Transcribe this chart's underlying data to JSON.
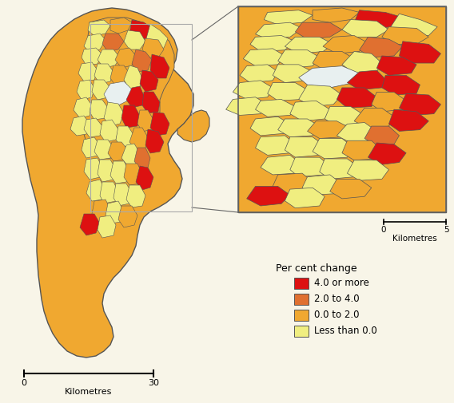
{
  "legend_title": "Per cent change",
  "legend_categories": [
    "4.0 or more",
    "2.0 to 4.0",
    "0.0 to 2.0",
    "Less than 0.0"
  ],
  "legend_colors": [
    "#dd1111",
    "#e07030",
    "#f0a830",
    "#f0ee80"
  ],
  "background_color": "#f8f5e8",
  "border_color": "#555555"
}
